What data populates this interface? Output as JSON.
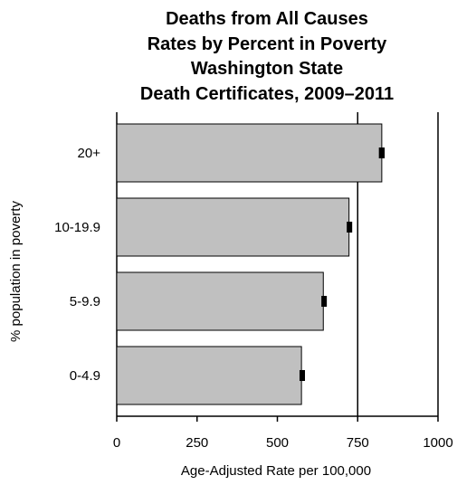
{
  "chart_data": {
    "type": "bar",
    "orientation": "horizontal",
    "title_lines": [
      "Deaths from All Causes",
      "Rates by Percent in Poverty",
      "Washington State",
      "Death Certificates, 2009–2011"
    ],
    "xlabel": "Age-Adjusted Rate per 100,000",
    "ylabel": "% population in poverty",
    "categories": [
      "20+",
      "10-19.9",
      "5-9.9",
      "0-4.9"
    ],
    "values": [
      825,
      723,
      643,
      575
    ],
    "error_bars": [
      {
        "low": 816,
        "high": 834
      },
      {
        "low": 716,
        "high": 730
      },
      {
        "low": 637,
        "high": 649
      },
      {
        "low": 569,
        "high": 581
      }
    ],
    "xlim": [
      0,
      1000
    ],
    "xticks": [
      0,
      250,
      500,
      750,
      1000
    ],
    "xtick_labels": [
      "0",
      "250",
      "500",
      "750",
      "1000"
    ],
    "reference_lines": [
      750,
      1000
    ],
    "colors": {
      "bar_fill": "#c0c0c0",
      "bar_stroke": "#000000",
      "error_bar": "#000000",
      "axis": "#000000"
    },
    "grid": false,
    "legend": "none"
  }
}
